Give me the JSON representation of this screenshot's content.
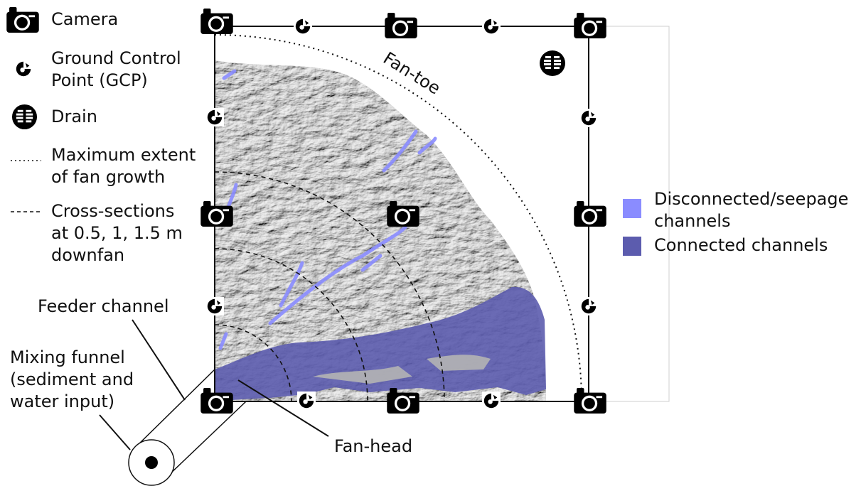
{
  "legend": {
    "camera": "Camera",
    "gcp": "Ground Control\nPoint (GCP)",
    "drain": "Drain",
    "extent": "Maximum extent\nof fan growth",
    "cross": "Cross-sections\nat 0.5, 1, 1.5 m\ndownfan"
  },
  "channels_legend": {
    "disconnected": "Disconnected/seepage\nchannels",
    "connected": "Connected channels"
  },
  "labels": {
    "fan_toe": "Fan-toe",
    "fan_head": "Fan-head",
    "feeder": "Feeder channel",
    "funnel": "Mixing funnel\n(sediment and\nwater input)"
  },
  "colors": {
    "disconnected": "#8a8cff",
    "connected": "#5c5cae",
    "fan_surface": "#b4b4b4"
  },
  "icons": [
    "camera-icon",
    "gcp-icon",
    "drain-icon"
  ]
}
